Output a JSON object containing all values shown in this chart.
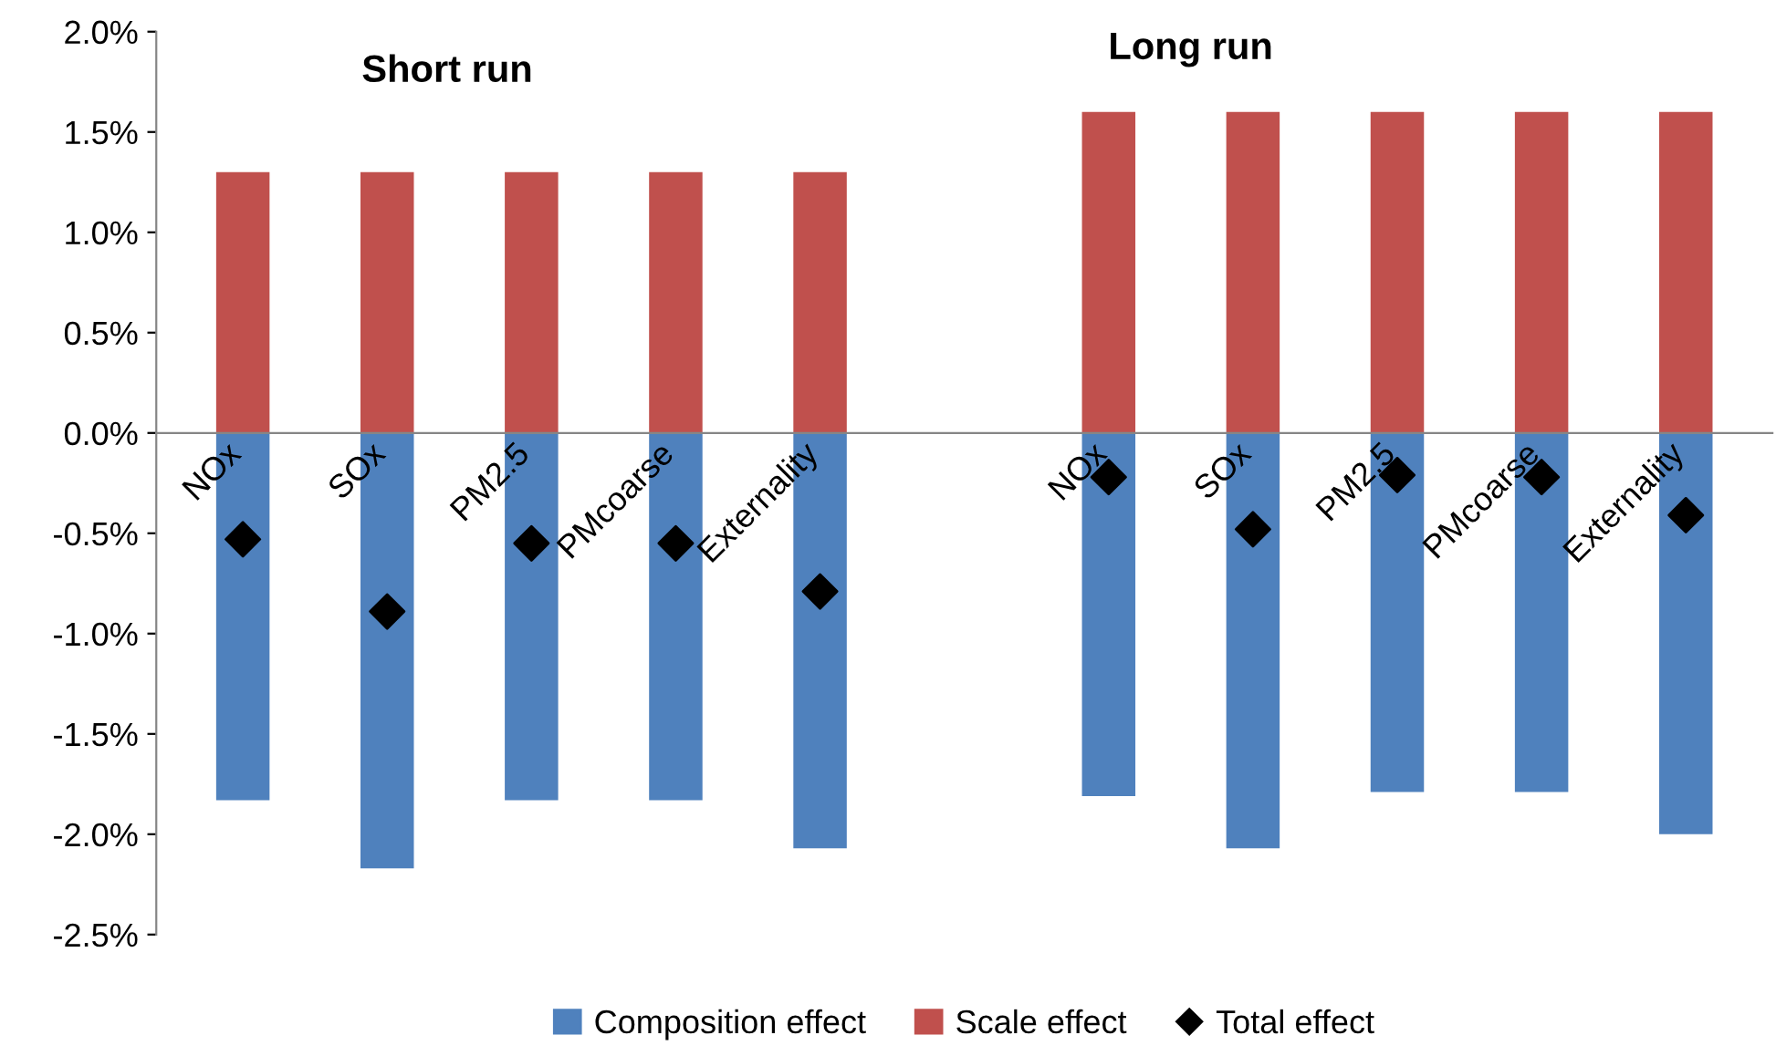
{
  "chart_data": {
    "type": "bar",
    "stacked": true,
    "categories": [
      "NOx",
      "SOx",
      "PM2.5",
      "PMcoarse",
      "Externality",
      null,
      "NOx",
      "SOx",
      "PM2.5",
      "PMcoarse",
      "Externality"
    ],
    "series": [
      {
        "name": "Composition effect",
        "color": "#4f81bd",
        "values": [
          -1.83,
          -2.17,
          -1.83,
          -1.83,
          -2.07,
          null,
          -1.81,
          -2.07,
          -1.79,
          -1.79,
          -2.0
        ]
      },
      {
        "name": "Scale effect",
        "color": "#c0504d",
        "values": [
          1.3,
          1.3,
          1.3,
          1.3,
          1.3,
          null,
          1.6,
          1.6,
          1.6,
          1.6,
          1.6
        ]
      },
      {
        "name": "Total effect",
        "color": "#000000",
        "type": "scatter",
        "marker": "diamond",
        "values": [
          -0.53,
          -0.89,
          -0.55,
          -0.55,
          -0.79,
          null,
          -0.22,
          -0.48,
          -0.21,
          -0.22,
          -0.41
        ]
      }
    ],
    "ylim": [
      -2.5,
      2.0
    ],
    "yticks": [
      {
        "value": -2.5,
        "label": "-2.5%"
      },
      {
        "value": -2.0,
        "label": "-2.0%"
      },
      {
        "value": -1.5,
        "label": "-1.5%"
      },
      {
        "value": -1.0,
        "label": "-1.0%"
      },
      {
        "value": -0.5,
        "label": "-0.5%"
      },
      {
        "value": 0.0,
        "label": "0.0%"
      },
      {
        "value": 0.5,
        "label": "0.5%"
      },
      {
        "value": 1.0,
        "label": "1.0%"
      },
      {
        "value": 1.5,
        "label": "1.5%"
      },
      {
        "value": 2.0,
        "label": "2.0%"
      }
    ],
    "annotations": [
      "Short run",
      "Long run"
    ],
    "grid": false,
    "legend": "bottom"
  }
}
